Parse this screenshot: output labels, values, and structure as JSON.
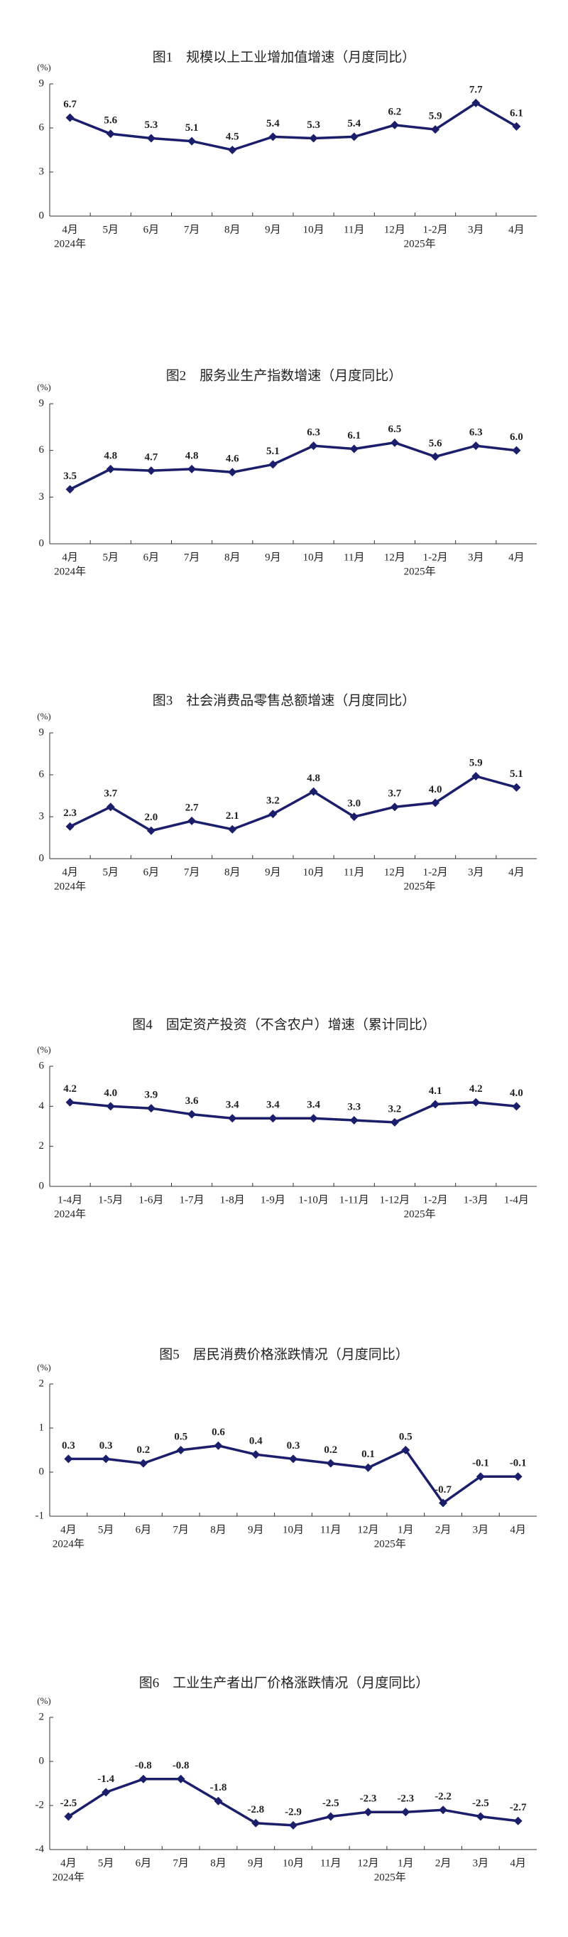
{
  "chart_data": [
    {
      "type": "line",
      "title": "图1　规模以上工业增加值增速（月度同比）",
      "y_unit": "(%)",
      "color": "#1b1f6b",
      "categories": [
        "4月",
        "5月",
        "6月",
        "7月",
        "8月",
        "9月",
        "10月",
        "11月",
        "12月",
        "1-2月",
        "3月",
        "4月"
      ],
      "year_labels": [
        "2024年",
        null,
        null,
        null,
        null,
        null,
        null,
        null,
        null,
        "2025年",
        null,
        null
      ],
      "values": [
        6.7,
        5.6,
        5.3,
        5.1,
        4.5,
        5.4,
        5.3,
        5.4,
        6.2,
        5.9,
        7.7,
        6.1
      ],
      "value_labels": [
        "6.7",
        "5.6",
        "5.3",
        "5.1",
        "4.5",
        "5.4",
        "5.3",
        "5.4",
        "6.2",
        "5.9",
        "7.7",
        "6.1"
      ],
      "ylim": [
        0,
        9
      ],
      "yticks": [
        0,
        3,
        6,
        9
      ]
    },
    {
      "type": "line",
      "title": "图2　服务业生产指数增速（月度同比）",
      "y_unit": "(%)",
      "color": "#1b1f6b",
      "categories": [
        "4月",
        "5月",
        "6月",
        "7月",
        "8月",
        "9月",
        "10月",
        "11月",
        "12月",
        "1-2月",
        "3月",
        "4月"
      ],
      "year_labels": [
        "2024年",
        null,
        null,
        null,
        null,
        null,
        null,
        null,
        null,
        "2025年",
        null,
        null
      ],
      "values": [
        3.5,
        4.8,
        4.7,
        4.8,
        4.6,
        5.1,
        6.3,
        6.1,
        6.5,
        5.6,
        6.3,
        6.0
      ],
      "value_labels": [
        "3.5",
        "4.8",
        "4.7",
        "4.8",
        "4.6",
        "5.1",
        "6.3",
        "6.1",
        "6.5",
        "5.6",
        "6.3",
        "6.0"
      ],
      "ylim": [
        0,
        9
      ],
      "yticks": [
        0,
        3,
        6,
        9
      ]
    },
    {
      "type": "line",
      "title": "图3　社会消费品零售总额增速（月度同比）",
      "y_unit": "(%)",
      "color": "#1b1f6b",
      "categories": [
        "4月",
        "5月",
        "6月",
        "7月",
        "8月",
        "9月",
        "10月",
        "11月",
        "12月",
        "1-2月",
        "3月",
        "4月"
      ],
      "year_labels": [
        "2024年",
        null,
        null,
        null,
        null,
        null,
        null,
        null,
        null,
        "2025年",
        null,
        null
      ],
      "values": [
        2.3,
        3.7,
        2.0,
        2.7,
        2.1,
        3.2,
        4.8,
        3.0,
        3.7,
        4.0,
        5.9,
        5.1
      ],
      "value_labels": [
        "2.3",
        "3.7",
        "2.0",
        "2.7",
        "2.1",
        "3.2",
        "4.8",
        "3.0",
        "3.7",
        "4.0",
        "5.9",
        "5.1"
      ],
      "ylim": [
        0,
        9
      ],
      "yticks": [
        0,
        3,
        6,
        9
      ]
    },
    {
      "type": "line",
      "title": "图4　固定资产投资（不含农户）增速（累计同比）",
      "y_unit": "(%)",
      "color": "#1b1f6b",
      "categories": [
        "1-4月",
        "1-5月",
        "1-6月",
        "1-7月",
        "1-8月",
        "1-9月",
        "1-10月",
        "1-11月",
        "1-12月",
        "1-2月",
        "1-3月",
        "1-4月"
      ],
      "year_labels": [
        "2024年",
        null,
        null,
        null,
        null,
        null,
        null,
        null,
        null,
        "2025年",
        null,
        null
      ],
      "values": [
        4.2,
        4.0,
        3.9,
        3.6,
        3.4,
        3.4,
        3.4,
        3.3,
        3.2,
        4.1,
        4.2,
        4.0
      ],
      "value_labels": [
        "4.2",
        "4.0",
        "3.9",
        "3.6",
        "3.4",
        "3.4",
        "3.4",
        "3.3",
        "3.2",
        "4.1",
        "4.2",
        "4.0"
      ],
      "ylim": [
        0,
        6
      ],
      "yticks": [
        0,
        2,
        4,
        6
      ]
    },
    {
      "type": "line",
      "title": "图5　居民消费价格涨跌情况（月度同比）",
      "y_unit": "(%)",
      "color": "#1b1f6b",
      "categories": [
        "4月",
        "5月",
        "6月",
        "7月",
        "8月",
        "9月",
        "10月",
        "11月",
        "12月",
        "1月",
        "2月",
        "3月",
        "4月"
      ],
      "year_labels": [
        "2024年",
        null,
        null,
        null,
        null,
        null,
        null,
        null,
        null,
        "2025年",
        null,
        null,
        null
      ],
      "values": [
        0.3,
        0.3,
        0.2,
        0.5,
        0.6,
        0.4,
        0.3,
        0.2,
        0.1,
        0.5,
        -0.7,
        -0.1,
        -0.1
      ],
      "value_labels": [
        "0.3",
        "0.3",
        "0.2",
        "0.5",
        "0.6",
        "0.4",
        "0.3",
        "0.2",
        "0.1",
        "0.5",
        "-0.7",
        "-0.1",
        "-0.1"
      ],
      "ylim": [
        -1,
        2
      ],
      "yticks": [
        -1,
        0,
        1,
        2
      ]
    },
    {
      "type": "line",
      "title": "图6　工业生产者出厂价格涨跌情况（月度同比）",
      "y_unit": "(%)",
      "color": "#1b1f6b",
      "categories": [
        "4月",
        "5月",
        "6月",
        "7月",
        "8月",
        "9月",
        "10月",
        "11月",
        "12月",
        "1月",
        "2月",
        "3月",
        "4月"
      ],
      "year_labels": [
        "2024年",
        null,
        null,
        null,
        null,
        null,
        null,
        null,
        null,
        "2025年",
        null,
        null,
        null
      ],
      "values": [
        -2.5,
        -1.4,
        -0.8,
        -0.8,
        -1.8,
        -2.8,
        -2.9,
        -2.5,
        -2.3,
        -2.3,
        -2.2,
        -2.5,
        -2.7
      ],
      "value_labels": [
        "-2.5",
        "-1.4",
        "-0.8",
        "-0.8",
        "-1.8",
        "-2.8",
        "-2.9",
        "-2.5",
        "-2.3",
        "-2.3",
        "-2.2",
        "-2.5",
        "-2.7"
      ],
      "ylim": [
        -4,
        2
      ],
      "yticks": [
        -4,
        -2,
        0,
        2
      ]
    }
  ]
}
